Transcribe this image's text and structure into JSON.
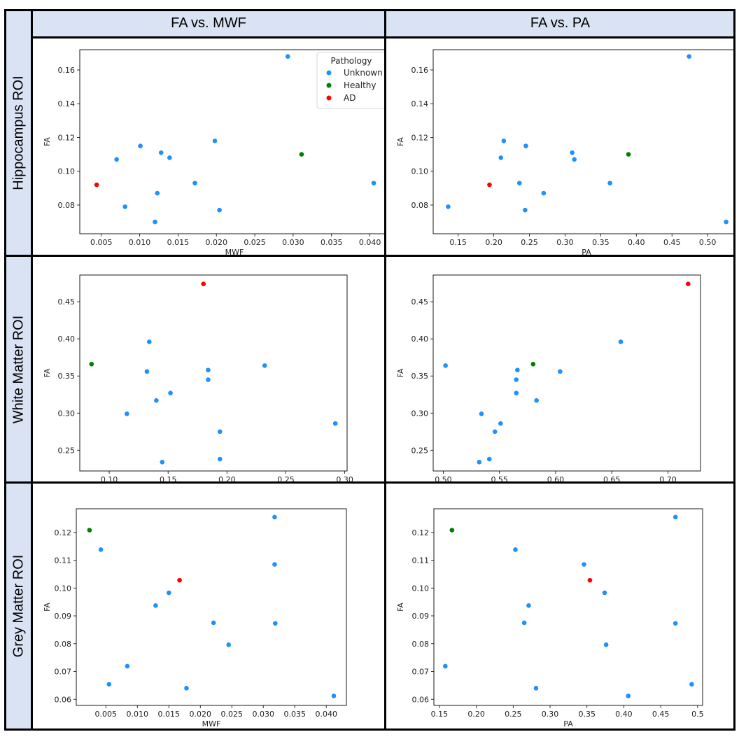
{
  "columns": [
    "FA vs. MWF",
    "FA vs. PA"
  ],
  "rows": [
    "Hippocampus ROI",
    "White Matter ROI",
    "Grey Matter ROI"
  ],
  "colors": {
    "header_bg": "#dae3f3",
    "Unknown": "#1e90ff",
    "Healthy": "#008000",
    "AD": "#ff0000"
  },
  "legend": {
    "title": "Pathology",
    "entries": [
      "Unknown",
      "Healthy",
      "AD"
    ]
  },
  "chart_data": [
    {
      "type": "scatter",
      "row": 0,
      "col": 0,
      "xlabel": "MWF",
      "ylabel": "FA",
      "xlim": [
        0.0022,
        0.0425
      ],
      "ylim": [
        0.063,
        0.172
      ],
      "xticks": [
        0.005,
        0.01,
        0.015,
        0.02,
        0.025,
        0.03,
        0.035,
        0.04
      ],
      "xticklabels": [
        "0.005",
        "0.010",
        "0.015",
        "0.020",
        "0.025",
        "0.030",
        "0.035",
        "0.040"
      ],
      "yticks": [
        0.08,
        0.1,
        0.12,
        0.14,
        0.16
      ],
      "yticklabels": [
        "0.08",
        "0.10",
        "0.12",
        "0.14",
        "0.16"
      ],
      "legend": true,
      "points": [
        {
          "x": 0.0293,
          "y": 0.168,
          "group": "Unknown"
        },
        {
          "x": 0.0101,
          "y": 0.115,
          "group": "Unknown"
        },
        {
          "x": 0.0198,
          "y": 0.118,
          "group": "Unknown"
        },
        {
          "x": 0.007,
          "y": 0.107,
          "group": "Unknown"
        },
        {
          "x": 0.0128,
          "y": 0.111,
          "group": "Unknown"
        },
        {
          "x": 0.0139,
          "y": 0.108,
          "group": "Unknown"
        },
        {
          "x": 0.0172,
          "y": 0.093,
          "group": "Unknown"
        },
        {
          "x": 0.0123,
          "y": 0.087,
          "group": "Unknown"
        },
        {
          "x": 0.0081,
          "y": 0.079,
          "group": "Unknown"
        },
        {
          "x": 0.0204,
          "y": 0.077,
          "group": "Unknown"
        },
        {
          "x": 0.012,
          "y": 0.07,
          "group": "Unknown"
        },
        {
          "x": 0.0405,
          "y": 0.093,
          "group": "Unknown"
        },
        {
          "x": 0.0311,
          "y": 0.11,
          "group": "Healthy"
        },
        {
          "x": 0.0044,
          "y": 0.092,
          "group": "AD"
        }
      ]
    },
    {
      "type": "scatter",
      "row": 0,
      "col": 1,
      "xlabel": "PA",
      "ylabel": "FA",
      "xlim": [
        0.115,
        0.545
      ],
      "ylim": [
        0.063,
        0.172
      ],
      "xticks": [
        0.15,
        0.2,
        0.25,
        0.3,
        0.35,
        0.4,
        0.45,
        0.5
      ],
      "xticklabels": [
        "0.15",
        "0.20",
        "0.25",
        "0.30",
        "0.35",
        "0.40",
        "0.45",
        "0.50"
      ],
      "yticks": [
        0.08,
        0.1,
        0.12,
        0.14,
        0.16
      ],
      "yticklabels": [
        "0.08",
        "0.10",
        "0.12",
        "0.14",
        "0.16"
      ],
      "legend": false,
      "points": [
        {
          "x": 0.474,
          "y": 0.168,
          "group": "Unknown"
        },
        {
          "x": 0.214,
          "y": 0.118,
          "group": "Unknown"
        },
        {
          "x": 0.245,
          "y": 0.115,
          "group": "Unknown"
        },
        {
          "x": 0.31,
          "y": 0.111,
          "group": "Unknown"
        },
        {
          "x": 0.21,
          "y": 0.108,
          "group": "Unknown"
        },
        {
          "x": 0.313,
          "y": 0.107,
          "group": "Unknown"
        },
        {
          "x": 0.236,
          "y": 0.093,
          "group": "Unknown"
        },
        {
          "x": 0.363,
          "y": 0.093,
          "group": "Unknown"
        },
        {
          "x": 0.27,
          "y": 0.087,
          "group": "Unknown"
        },
        {
          "x": 0.136,
          "y": 0.079,
          "group": "Unknown"
        },
        {
          "x": 0.244,
          "y": 0.077,
          "group": "Unknown"
        },
        {
          "x": 0.526,
          "y": 0.07,
          "group": "Unknown"
        },
        {
          "x": 0.389,
          "y": 0.11,
          "group": "Healthy"
        },
        {
          "x": 0.194,
          "y": 0.092,
          "group": "AD"
        }
      ]
    },
    {
      "type": "scatter",
      "row": 1,
      "col": 0,
      "xlabel": "MWF",
      "ylabel": "FA",
      "xlim": [
        0.075,
        0.302
      ],
      "ylim": [
        0.222,
        0.486
      ],
      "xticks": [
        0.1,
        0.15,
        0.2,
        0.25,
        0.3
      ],
      "xticklabels": [
        "0.10",
        "0.15",
        "0.20",
        "0.25",
        "0.30"
      ],
      "yticks": [
        0.25,
        0.3,
        0.35,
        0.4,
        0.45
      ],
      "yticklabels": [
        "0.25",
        "0.30",
        "0.35",
        "0.40",
        "0.45"
      ],
      "legend": false,
      "points": [
        {
          "x": 0.134,
          "y": 0.396,
          "group": "Unknown"
        },
        {
          "x": 0.232,
          "y": 0.364,
          "group": "Unknown"
        },
        {
          "x": 0.184,
          "y": 0.358,
          "group": "Unknown"
        },
        {
          "x": 0.132,
          "y": 0.356,
          "group": "Unknown"
        },
        {
          "x": 0.184,
          "y": 0.345,
          "group": "Unknown"
        },
        {
          "x": 0.152,
          "y": 0.327,
          "group": "Unknown"
        },
        {
          "x": 0.14,
          "y": 0.317,
          "group": "Unknown"
        },
        {
          "x": 0.115,
          "y": 0.299,
          "group": "Unknown"
        },
        {
          "x": 0.292,
          "y": 0.286,
          "group": "Unknown"
        },
        {
          "x": 0.194,
          "y": 0.275,
          "group": "Unknown"
        },
        {
          "x": 0.194,
          "y": 0.238,
          "group": "Unknown"
        },
        {
          "x": 0.145,
          "y": 0.234,
          "group": "Unknown"
        },
        {
          "x": 0.085,
          "y": 0.366,
          "group": "Healthy"
        },
        {
          "x": 0.18,
          "y": 0.474,
          "group": "AD"
        }
      ]
    },
    {
      "type": "scatter",
      "row": 1,
      "col": 1,
      "xlabel": "PA",
      "ylabel": "FA",
      "xlim": [
        0.491,
        0.729
      ],
      "ylim": [
        0.222,
        0.486
      ],
      "xticks": [
        0.5,
        0.55,
        0.6,
        0.65,
        0.7
      ],
      "xticklabels": [
        "0.50",
        "0.55",
        "0.60",
        "0.65",
        "0.70"
      ],
      "yticks": [
        0.25,
        0.3,
        0.35,
        0.4,
        0.45
      ],
      "yticklabels": [
        "0.25",
        "0.30",
        "0.35",
        "0.40",
        "0.45"
      ],
      "legend": false,
      "points": [
        {
          "x": 0.658,
          "y": 0.396,
          "group": "Unknown"
        },
        {
          "x": 0.502,
          "y": 0.364,
          "group": "Unknown"
        },
        {
          "x": 0.566,
          "y": 0.358,
          "group": "Unknown"
        },
        {
          "x": 0.604,
          "y": 0.356,
          "group": "Unknown"
        },
        {
          "x": 0.565,
          "y": 0.345,
          "group": "Unknown"
        },
        {
          "x": 0.565,
          "y": 0.327,
          "group": "Unknown"
        },
        {
          "x": 0.583,
          "y": 0.317,
          "group": "Unknown"
        },
        {
          "x": 0.534,
          "y": 0.299,
          "group": "Unknown"
        },
        {
          "x": 0.551,
          "y": 0.286,
          "group": "Unknown"
        },
        {
          "x": 0.546,
          "y": 0.275,
          "group": "Unknown"
        },
        {
          "x": 0.541,
          "y": 0.238,
          "group": "Unknown"
        },
        {
          "x": 0.532,
          "y": 0.234,
          "group": "Unknown"
        },
        {
          "x": 0.58,
          "y": 0.366,
          "group": "Healthy"
        },
        {
          "x": 0.718,
          "y": 0.474,
          "group": "AD"
        }
      ]
    },
    {
      "type": "scatter",
      "row": 2,
      "col": 0,
      "xlabel": "MWF",
      "ylabel": "FA",
      "xlim": [
        0.0003,
        0.0432
      ],
      "ylim": [
        0.0578,
        0.1285
      ],
      "xticks": [
        0.005,
        0.01,
        0.015,
        0.02,
        0.025,
        0.03,
        0.035,
        0.04
      ],
      "xticklabels": [
        "0.005",
        "0.010",
        "0.015",
        "0.020",
        "0.025",
        "0.030",
        "0.035",
        "0.040"
      ],
      "yticks": [
        0.06,
        0.07,
        0.08,
        0.09,
        0.1,
        0.11,
        0.12
      ],
      "yticklabels": [
        "0.06",
        "0.07",
        "0.08",
        "0.09",
        "0.10",
        "0.11",
        "0.12"
      ],
      "legend": false,
      "points": [
        {
          "x": 0.0318,
          "y": 0.1255,
          "group": "Unknown"
        },
        {
          "x": 0.0042,
          "y": 0.1138,
          "group": "Unknown"
        },
        {
          "x": 0.0318,
          "y": 0.1085,
          "group": "Unknown"
        },
        {
          "x": 0.015,
          "y": 0.0983,
          "group": "Unknown"
        },
        {
          "x": 0.0129,
          "y": 0.0937,
          "group": "Unknown"
        },
        {
          "x": 0.0221,
          "y": 0.0875,
          "group": "Unknown"
        },
        {
          "x": 0.0319,
          "y": 0.0873,
          "group": "Unknown"
        },
        {
          "x": 0.0245,
          "y": 0.0796,
          "group": "Unknown"
        },
        {
          "x": 0.0084,
          "y": 0.0719,
          "group": "Unknown"
        },
        {
          "x": 0.0055,
          "y": 0.0654,
          "group": "Unknown"
        },
        {
          "x": 0.0178,
          "y": 0.064,
          "group": "Unknown"
        },
        {
          "x": 0.0412,
          "y": 0.0612,
          "group": "Unknown"
        },
        {
          "x": 0.0024,
          "y": 0.1208,
          "group": "Healthy"
        },
        {
          "x": 0.0167,
          "y": 0.1028,
          "group": "AD"
        }
      ]
    },
    {
      "type": "scatter",
      "row": 2,
      "col": 1,
      "xlabel": "PA",
      "ylabel": "FA",
      "xlim": [
        0.1425,
        0.5068
      ],
      "ylim": [
        0.0578,
        0.1285
      ],
      "xticks": [
        0.15,
        0.2,
        0.25,
        0.3,
        0.35,
        0.4,
        0.45,
        0.5
      ],
      "xticklabels": [
        "0.15",
        "0.20",
        "0.25",
        "0.30",
        "0.35",
        "0.40",
        "0.45",
        "0.5"
      ],
      "yticks": [
        0.06,
        0.07,
        0.08,
        0.09,
        0.1,
        0.11,
        0.12
      ],
      "yticklabels": [
        "0.06",
        "0.07",
        "0.08",
        "0.09",
        "0.10",
        "0.11",
        "0.12"
      ],
      "legend": false,
      "points": [
        {
          "x": 0.47,
          "y": 0.1255,
          "group": "Unknown"
        },
        {
          "x": 0.253,
          "y": 0.1138,
          "group": "Unknown"
        },
        {
          "x": 0.346,
          "y": 0.1085,
          "group": "Unknown"
        },
        {
          "x": 0.374,
          "y": 0.0983,
          "group": "Unknown"
        },
        {
          "x": 0.271,
          "y": 0.0937,
          "group": "Unknown"
        },
        {
          "x": 0.265,
          "y": 0.0875,
          "group": "Unknown"
        },
        {
          "x": 0.47,
          "y": 0.0873,
          "group": "Unknown"
        },
        {
          "x": 0.376,
          "y": 0.0796,
          "group": "Unknown"
        },
        {
          "x": 0.158,
          "y": 0.0719,
          "group": "Unknown"
        },
        {
          "x": 0.492,
          "y": 0.0654,
          "group": "Unknown"
        },
        {
          "x": 0.281,
          "y": 0.064,
          "group": "Unknown"
        },
        {
          "x": 0.406,
          "y": 0.0612,
          "group": "Unknown"
        },
        {
          "x": 0.167,
          "y": 0.1208,
          "group": "Healthy"
        },
        {
          "x": 0.354,
          "y": 0.1028,
          "group": "AD"
        }
      ]
    }
  ]
}
